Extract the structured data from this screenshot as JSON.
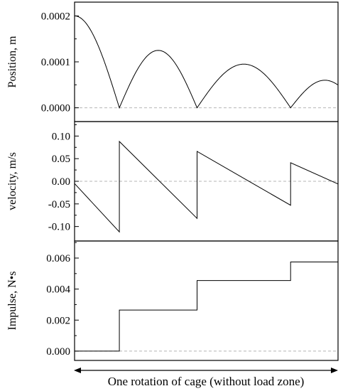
{
  "chart_data": [
    {
      "type": "line",
      "ylabel": "Position, m",
      "yticks": [
        "0.0002",
        "0.0001",
        "0.0000"
      ],
      "ytick_values": [
        0.0002,
        0.0001,
        0.0
      ],
      "ylim": [
        -3e-05,
        0.00023
      ],
      "xlim": [
        0,
        1
      ],
      "zero_line": true,
      "series": [
        {
          "segments": [
            {
              "x_start": 0.0,
              "x_end": 0.17,
              "shape": "arc-descending",
              "peak_x": 0.0,
              "peak": 0.0002
            },
            {
              "x_start": 0.17,
              "x_end": 0.465,
              "shape": "arch",
              "peak": 0.000125
            },
            {
              "x_start": 0.465,
              "x_end": 0.82,
              "shape": "arch",
              "peak": 9.5e-05
            },
            {
              "x_start": 0.82,
              "x_end": 1.0,
              "shape": "arch-partial",
              "peak_x": 0.95,
              "peak": 6e-05,
              "end": 5e-05
            }
          ]
        }
      ]
    },
    {
      "type": "line",
      "ylabel": "velocity, m/s",
      "yticks": [
        "0.10",
        "0.05",
        "0.00",
        "-0.05",
        "-0.10"
      ],
      "ytick_values": [
        0.1,
        0.05,
        0.0,
        -0.05,
        -0.1
      ],
      "ylim": [
        -0.132,
        0.132
      ],
      "xlim": [
        0,
        1
      ],
      "zero_line": true,
      "series": [
        {
          "x": [
            0.0,
            0.17,
            0.17,
            0.465,
            0.465,
            0.82,
            0.82,
            1.0
          ],
          "y": [
            -0.005,
            -0.112,
            0.088,
            -0.082,
            0.066,
            -0.053,
            0.041,
            -0.006
          ]
        }
      ]
    },
    {
      "type": "line",
      "ylabel": "Impulse, N•s",
      "yticks": [
        "0.006",
        "0.004",
        "0.002",
        "0.000"
      ],
      "ytick_values": [
        0.006,
        0.004,
        0.002,
        0.0
      ],
      "ylim": [
        -0.0006,
        0.0071
      ],
      "xlim": [
        0,
        1
      ],
      "zero_line": true,
      "series": [
        {
          "x": [
            0.0,
            0.17,
            0.17,
            0.465,
            0.465,
            0.82,
            0.82,
            1.0
          ],
          "y": [
            0.0,
            0.0,
            0.00265,
            0.00265,
            0.00455,
            0.00455,
            0.00575,
            0.00575
          ]
        }
      ]
    }
  ],
  "xlabel": "One rotation of cage (without load zone)"
}
